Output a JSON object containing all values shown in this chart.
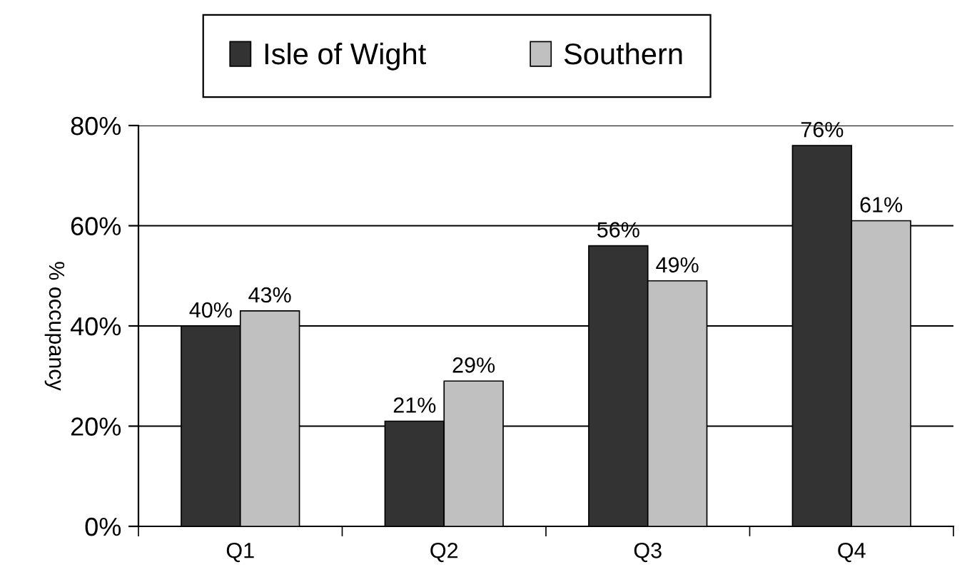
{
  "chart_data": {
    "type": "bar",
    "ylabel": "% occupancy",
    "categories": [
      "Q1",
      "Q2",
      "Q3",
      "Q4"
    ],
    "series": [
      {
        "name": "Isle of Wight",
        "color": "#333333",
        "values": [
          40,
          21,
          56,
          76
        ],
        "value_labels": [
          "40%",
          "21%",
          "56%",
          "76%"
        ]
      },
      {
        "name": "Southern",
        "color": "#c0c0c0",
        "values": [
          43,
          29,
          49,
          61
        ],
        "value_labels": [
          "43%",
          "29%",
          "49%",
          "61%"
        ]
      }
    ],
    "ylim": [
      0,
      80
    ],
    "yticks": [
      {
        "value": 0,
        "label": "0%"
      },
      {
        "value": 20,
        "label": "20%"
      },
      {
        "value": 40,
        "label": "40%"
      },
      {
        "value": 60,
        "label": "60%"
      },
      {
        "value": 80,
        "label": "80%"
      }
    ],
    "grid": "y",
    "legend": "top"
  }
}
